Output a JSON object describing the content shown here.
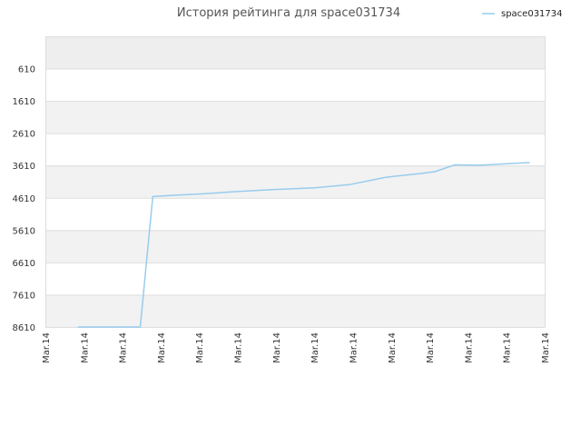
{
  "chart_data": {
    "type": "line",
    "title": "История рейтинга для space031734",
    "xlabel": "",
    "ylabel": "",
    "y_reversed": true,
    "ylim": [
      -390,
      8610
    ],
    "y_ticks": [
      8610,
      7610,
      6610,
      5610,
      4610,
      3610,
      2610,
      1610,
      610
    ],
    "y_tick_labels": [
      "8610",
      "7610",
      "6610",
      "5610",
      "4610",
      "3610",
      "2610",
      "1610",
      "610"
    ],
    "x_tick_labels": [
      "Mar.14",
      "Mar.14",
      "Mar.14",
      "Mar.14",
      "Mar.14",
      "Mar.14",
      "Mar.14",
      "Mar.14",
      "Mar.14",
      "Mar.14",
      "Mar.14",
      "Mar.14",
      "Mar.14",
      "Mar.14"
    ],
    "grid": true,
    "legend_position": "top-right",
    "series": [
      {
        "name": "space031734",
        "color": "#99ccee",
        "points": [
          [
            0.065,
            8610
          ],
          [
            0.19,
            8610
          ],
          [
            0.215,
            4570
          ],
          [
            0.26,
            4530
          ],
          [
            0.32,
            4480
          ],
          [
            0.38,
            4420
          ],
          [
            0.45,
            4360
          ],
          [
            0.54,
            4300
          ],
          [
            0.61,
            4200
          ],
          [
            0.68,
            3980
          ],
          [
            0.7,
            3940
          ],
          [
            0.75,
            3860
          ],
          [
            0.78,
            3800
          ],
          [
            0.82,
            3590
          ],
          [
            0.87,
            3600
          ],
          [
            0.92,
            3560
          ],
          [
            0.97,
            3520
          ]
        ]
      }
    ],
    "colors": {
      "line": "#99ccee",
      "band": "#f2f2f2",
      "band_top": "#eeeeee",
      "grid": "#dddddd",
      "axis_text": "#333333"
    }
  }
}
